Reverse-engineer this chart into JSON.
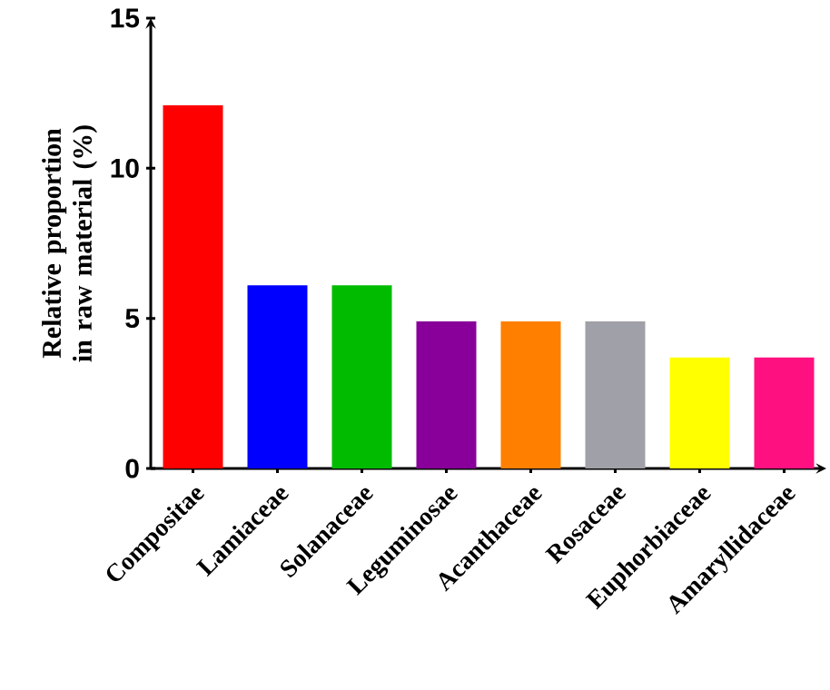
{
  "chart_data": {
    "type": "bar",
    "ylabel": "Relative proportion in raw material (%)",
    "categories": [
      "Compositae",
      "Lamiaceae",
      "Solanaceae",
      "Leguminosae",
      "Acanthaceae",
      "Rosaceae",
      "Euphorbiaceae",
      "Amaryllidaceae"
    ],
    "values": [
      12.1,
      6.1,
      6.1,
      4.9,
      4.9,
      4.9,
      3.7,
      3.7
    ],
    "colors": [
      "#ff0000",
      "#0000ff",
      "#00bb00",
      "#880099",
      "#ff8000",
      "#a0a0a8",
      "#ffff00",
      "#ff1080"
    ],
    "ylim": [
      0,
      15
    ],
    "yticks": [
      0,
      5,
      10,
      15
    ],
    "grid": false
  }
}
